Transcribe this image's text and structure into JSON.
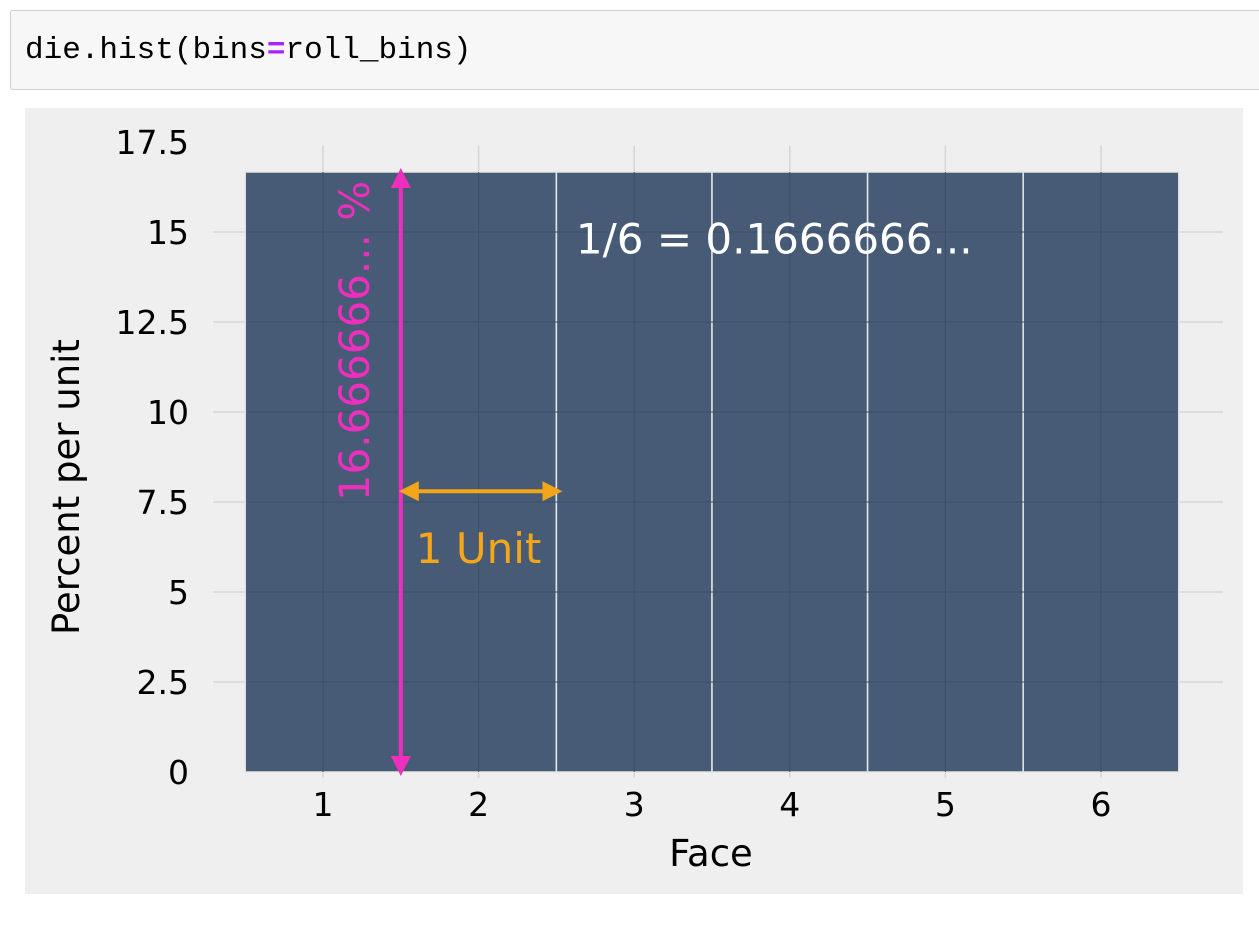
{
  "code_cell": {
    "fn": "die.hist",
    "open": "(",
    "arg_name": "bins",
    "operator": "=",
    "arg_value": "roll_bins",
    "close": ")"
  },
  "chart_data": {
    "type": "bar",
    "categories": [
      "1",
      "2",
      "3",
      "4",
      "5",
      "6"
    ],
    "values": [
      16.6667,
      16.6667,
      16.6667,
      16.6667,
      16.6667,
      16.6667
    ],
    "bin_edges": [
      0.5,
      1.5,
      2.5,
      3.5,
      4.5,
      5.5,
      6.5
    ],
    "xlabel": "Face",
    "ylabel": "Percent per unit",
    "xlim": [
      0,
      6.5
    ],
    "ylim": [
      0,
      17.5
    ],
    "xticks": [
      1,
      2,
      3,
      4,
      5,
      6
    ],
    "yticks": [
      0,
      2.5,
      5,
      7.5,
      10,
      12.5,
      15,
      17.5
    ],
    "ytick_labels": [
      "0",
      "2.5",
      "5",
      "7.5",
      "10",
      "12.5",
      "15",
      "17.5"
    ],
    "grid": true,
    "annotations": {
      "height_label": "16.666666... %",
      "ratio_label": "1/6 = 0.1666666...",
      "width_label": "1 Unit"
    }
  },
  "colors": {
    "bar_fill": "#475b76",
    "bar_edge": "#e6e6e6",
    "grid": "#d5d5d5",
    "height_arrow": "#ee2fbe",
    "width_arrow": "#f3a618",
    "ratio_text": "#ffffff",
    "axis_text": "#000000"
  }
}
